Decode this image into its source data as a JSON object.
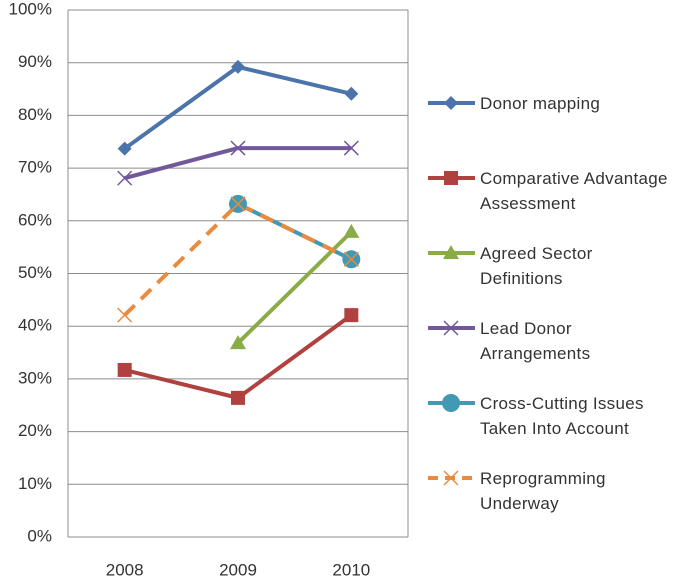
{
  "chart_data": {
    "type": "line",
    "categories": [
      "2008",
      "2009",
      "2010"
    ],
    "ylim": [
      0,
      100
    ],
    "yticks": [
      {
        "value": 0,
        "label": "0%"
      },
      {
        "value": 10,
        "label": "10%"
      },
      {
        "value": 20,
        "label": "20%"
      },
      {
        "value": 30,
        "label": "30%"
      },
      {
        "value": 40,
        "label": "40%"
      },
      {
        "value": 50,
        "label": "50%"
      },
      {
        "value": 60,
        "label": "60%"
      },
      {
        "value": 70,
        "label": "70%"
      },
      {
        "value": 80,
        "label": "80%"
      },
      {
        "value": 90,
        "label": "90%"
      },
      {
        "value": 100,
        "label": "100%"
      }
    ],
    "grid": true,
    "legend": "right",
    "series": [
      {
        "name": "Donor mapping",
        "color": "#4a74ab",
        "marker": "diamond",
        "values": [
          73.7,
          89.2,
          84.1
        ]
      },
      {
        "name": "Comparative Advantage Assessment",
        "color": "#b0413e",
        "marker": "square",
        "values": [
          31.7,
          26.4,
          42.1
        ]
      },
      {
        "name": "Agreed Sector Definitions",
        "color": "#8aac46",
        "marker": "triangle",
        "values": [
          null,
          36.8,
          57.9
        ]
      },
      {
        "name": "Lead Donor Arrangements",
        "color": "#71589b",
        "marker": "x",
        "values": [
          68.1,
          73.8,
          73.8
        ]
      },
      {
        "name": "Cross-Cutting Issues Taken Into Account",
        "color": "#4299b4",
        "marker": "circle",
        "values": [
          null,
          63.2,
          52.7
        ]
      },
      {
        "name": "Reprogramming Underway",
        "color": "#e98a3e",
        "marker": "x",
        "dashed": true,
        "values": [
          42.1,
          63.2,
          52.7
        ]
      }
    ]
  }
}
